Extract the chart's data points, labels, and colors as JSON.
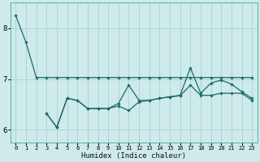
{
  "xlabel": "Humidex (Indice chaleur)",
  "bg_color": "#ceeaea",
  "grid_color": "#9ecece",
  "line_color": "#1a6b6b",
  "xlim": [
    -0.5,
    23.5
  ],
  "ylim": [
    5.75,
    8.5
  ],
  "yticks": [
    6,
    7,
    8
  ],
  "xticks": [
    0,
    1,
    2,
    3,
    4,
    5,
    6,
    7,
    8,
    9,
    10,
    11,
    12,
    13,
    14,
    15,
    16,
    17,
    18,
    19,
    20,
    21,
    22,
    23
  ],
  "series1_x": [
    0,
    1,
    2,
    3,
    4,
    5,
    6,
    7,
    8,
    9,
    10,
    11,
    12,
    13,
    14,
    15,
    16,
    17,
    18,
    19,
    20,
    21,
    22,
    23
  ],
  "series1_y": [
    8.25,
    7.72,
    7.03,
    7.03,
    7.03,
    7.03,
    7.03,
    7.03,
    7.03,
    7.03,
    7.03,
    7.03,
    7.03,
    7.03,
    7.03,
    7.03,
    7.03,
    7.03,
    7.03,
    7.03,
    7.03,
    7.03,
    7.03,
    7.03
  ],
  "series2_x": [
    3,
    4,
    5,
    6,
    7,
    8,
    9,
    10,
    11,
    12,
    13,
    14,
    15,
    16,
    17,
    18,
    19,
    20,
    21,
    22,
    23
  ],
  "series2_y": [
    6.32,
    6.05,
    6.62,
    6.58,
    6.42,
    6.42,
    6.42,
    6.47,
    6.38,
    6.55,
    6.58,
    6.62,
    6.65,
    6.67,
    6.88,
    6.68,
    6.68,
    6.72,
    6.72,
    6.72,
    6.58
  ],
  "series3_x": [
    3,
    4,
    5,
    6,
    7,
    8,
    9,
    10,
    11,
    12,
    13,
    14,
    15,
    16,
    17,
    18,
    19,
    20,
    21,
    22,
    23
  ],
  "series3_y": [
    6.32,
    6.05,
    6.62,
    6.58,
    6.42,
    6.42,
    6.42,
    6.52,
    6.88,
    6.58,
    6.58,
    6.62,
    6.65,
    6.68,
    7.22,
    6.72,
    6.92,
    6.98,
    6.9,
    6.75,
    6.62
  ]
}
